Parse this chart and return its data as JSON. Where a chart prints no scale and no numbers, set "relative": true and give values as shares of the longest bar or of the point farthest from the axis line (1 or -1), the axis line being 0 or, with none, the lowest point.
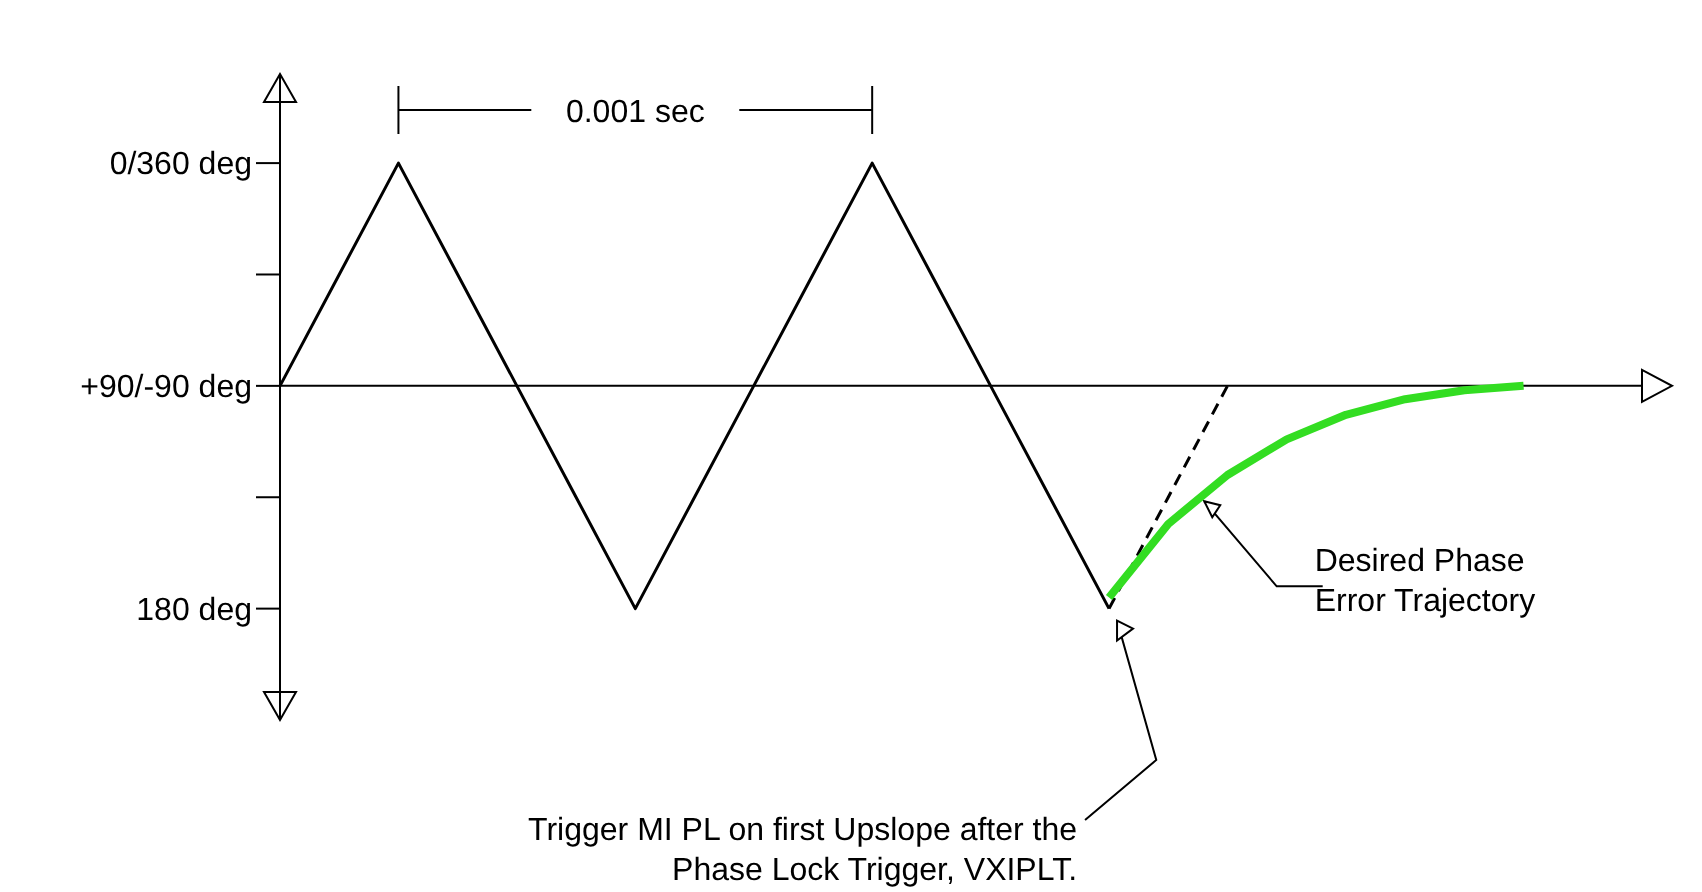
{
  "chart_data": {
    "type": "line",
    "relative": true,
    "categories": [
      null,
      null,
      null,
      null,
      null,
      null,
      null,
      null,
      null,
      null,
      null,
      null,
      null,
      null,
      null,
      null,
      null,
      null,
      null,
      null,
      null,
      null,
      null,
      null
    ],
    "marker": "none",
    "annotations": [
      "0/360 deg",
      "+90/-90 deg",
      "180 deg",
      "0.001 sec",
      "Desired Phase\nError Trajectory",
      "Trigger MI PL on first Upslope after the\nPhase Lock Trigger, VXIPLT."
    ],
    "series": [
      {
        "color": "#000000",
        "values": [
          0,
          0.5,
          1,
          0.5,
          0,
          -0.5,
          -1,
          -0.5,
          0,
          0.5,
          1,
          0.5,
          0,
          -0.5,
          -1,
          null,
          null,
          null,
          null,
          null,
          null,
          null,
          null,
          null
        ]
      },
      {
        "color": "#000000",
        "line_style": "dashed",
        "values": [
          null,
          null,
          null,
          null,
          null,
          null,
          null,
          null,
          null,
          null,
          null,
          null,
          null,
          null,
          -1,
          -0.5,
          0,
          null,
          null,
          null,
          null,
          null,
          null,
          null
        ]
      },
      {
        "color": "#33dd22",
        "values": [
          null,
          null,
          null,
          null,
          null,
          null,
          null,
          null,
          null,
          null,
          null,
          null,
          null,
          null,
          -0.95,
          -0.62,
          -0.4,
          -0.24,
          -0.13,
          -0.06,
          -0.02,
          0,
          null,
          null
        ]
      }
    ]
  }
}
